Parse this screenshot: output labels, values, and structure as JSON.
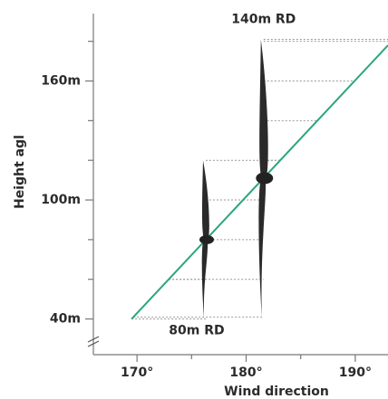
{
  "chart_data": {
    "type": "line",
    "x_label": "Wind direction",
    "y_label": "Height agl",
    "x": [
      169.5,
      193
    ],
    "y": [
      40,
      178
    ],
    "color": "#2ba67c",
    "xlim": [
      166,
      193
    ],
    "ylim": [
      22,
      194
    ],
    "xticks": [
      {
        "value": 170,
        "label": "170°"
      },
      {
        "value": 180,
        "label": "180°"
      },
      {
        "value": 190,
        "label": "190°"
      }
    ],
    "xminor": [
      175,
      185
    ],
    "yticks": [
      {
        "value": 40,
        "label": "40m"
      },
      {
        "value": 100,
        "label": "100m"
      },
      {
        "value": 160,
        "label": "160m"
      }
    ],
    "yminor": [
      60,
      80,
      120,
      140,
      180
    ],
    "turbines": [
      {
        "label": "80m RD",
        "hub_height": 80,
        "rotor_diameter": 80,
        "direction": 176.3
      },
      {
        "label": "140m RD",
        "hub_height": 111,
        "rotor_diameter": 140,
        "direction": 181.6
      }
    ]
  }
}
